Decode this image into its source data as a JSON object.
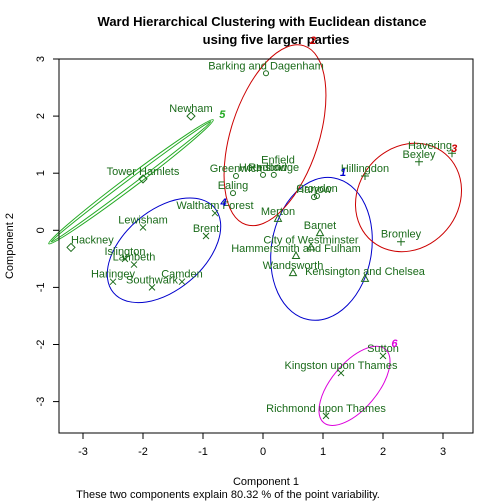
{
  "chart_data": {
    "type": "scatter",
    "title_line1": "Ward Hierarchical Clustering with Euclidean distance",
    "title_line2": "using five larger parties",
    "xlabel": "Component 1",
    "ylabel": "Component 2",
    "footnote": "These two components explain 80.32 % of the point variability.",
    "xlim": [
      -3.4,
      3.5
    ],
    "ylim": [
      -3.55,
      3.0
    ],
    "x_ticks": [
      -3,
      -2,
      -1,
      0,
      1,
      2,
      3
    ],
    "y_ticks": [
      -3,
      -2,
      -1,
      0,
      1,
      2,
      3
    ],
    "label_color": "#1a6b1a",
    "points": [
      {
        "label": "Barking and Dagenham",
        "x": 0.05,
        "y": 2.75,
        "cluster": 2
      },
      {
        "label": "Hackney",
        "x": -3.2,
        "y": -0.3,
        "cluster": 5
      },
      {
        "label": "Newham",
        "x": -1.2,
        "y": 2.0,
        "cluster": 5
      },
      {
        "label": "Tower Hamlets",
        "x": -2.0,
        "y": 0.9,
        "cluster": 5
      },
      {
        "label": "Havering",
        "x": 3.15,
        "y": 1.35,
        "cluster": 3
      },
      {
        "label": "Bexley",
        "x": 2.6,
        "y": 1.2,
        "cluster": 3
      },
      {
        "label": "Hillingdon",
        "x": 1.7,
        "y": 0.95,
        "cluster": 3
      },
      {
        "label": "Bromley",
        "x": 2.3,
        "y": -0.2,
        "cluster": 3
      },
      {
        "label": "Enfield",
        "x": 0.25,
        "y": 1.1,
        "cluster": 2
      },
      {
        "label": "Greenwich",
        "x": -0.45,
        "y": 0.95,
        "cluster": 2
      },
      {
        "label": "Hounslow",
        "x": 0.0,
        "y": 0.97,
        "cluster": 2
      },
      {
        "label": "Redbridge",
        "x": 0.18,
        "y": 0.97,
        "cluster": 2
      },
      {
        "label": "Ealing",
        "x": -0.5,
        "y": 0.65,
        "cluster": 2
      },
      {
        "label": "Croydon",
        "x": 0.9,
        "y": 0.6,
        "cluster": 2
      },
      {
        "label": "Harrow",
        "x": 0.85,
        "y": 0.58,
        "cluster": 2
      },
      {
        "label": "Waltham Forest",
        "x": -0.8,
        "y": 0.3,
        "cluster": 4
      },
      {
        "label": "Brent",
        "x": -0.95,
        "y": -0.1,
        "cluster": 4
      },
      {
        "label": "Lewisham",
        "x": -2.0,
        "y": 0.05,
        "cluster": 4
      },
      {
        "label": "Islington",
        "x": -2.3,
        "y": -0.5,
        "cluster": 4
      },
      {
        "label": "Lambeth",
        "x": -2.15,
        "y": -0.6,
        "cluster": 4
      },
      {
        "label": "Haringey",
        "x": -2.5,
        "y": -0.9,
        "cluster": 4
      },
      {
        "label": "Southwark",
        "x": -1.85,
        "y": -1.0,
        "cluster": 4
      },
      {
        "label": "Camden",
        "x": -1.35,
        "y": -0.9,
        "cluster": 4
      },
      {
        "label": "Merton",
        "x": 0.25,
        "y": 0.2,
        "cluster": 1
      },
      {
        "label": "Barnet",
        "x": 0.95,
        "y": -0.05,
        "cluster": 1
      },
      {
        "label": "City of Westminster",
        "x": 0.8,
        "y": -0.3,
        "cluster": 1
      },
      {
        "label": "Hammersmith and Fulham",
        "x": 0.55,
        "y": -0.45,
        "cluster": 1
      },
      {
        "label": "Wandsworth",
        "x": 0.5,
        "y": -0.75,
        "cluster": 1
      },
      {
        "label": "Kensington and Chelsea",
        "x": 1.7,
        "y": -0.85,
        "cluster": 1
      },
      {
        "label": "Sutton",
        "x": 2.0,
        "y": -2.2,
        "cluster": 6
      },
      {
        "label": "Kingston upon Thames",
        "x": 1.3,
        "y": -2.5,
        "cluster": 6
      },
      {
        "label": "Richmond upon Thames",
        "x": 1.05,
        "y": -3.25,
        "cluster": 6
      }
    ],
    "clusters": [
      {
        "id": "1",
        "color": "#0000cc"
      },
      {
        "id": "2",
        "color": "#cc0000"
      },
      {
        "id": "3",
        "color": "#cc0000"
      },
      {
        "id": "4",
        "color": "#0000cc"
      },
      {
        "id": "5",
        "color": "#22aa22"
      },
      {
        "id": "6",
        "color": "#dd00dd"
      }
    ]
  }
}
